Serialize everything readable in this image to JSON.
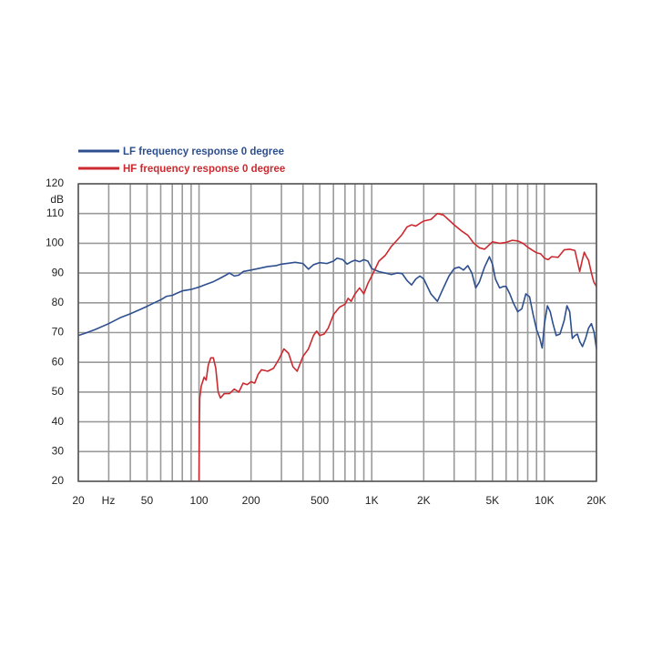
{
  "chart_data": {
    "type": "line",
    "title": "",
    "xlabel": "Hz",
    "ylabel": "dB",
    "x_scale": "log",
    "xlim": [
      20,
      20000
    ],
    "ylim": [
      20,
      120
    ],
    "grid": true,
    "legend_position": "top-left",
    "x_ticks": [
      {
        "value": 20,
        "label": "20"
      },
      {
        "value": 50,
        "label": "50"
      },
      {
        "value": 100,
        "label": "100"
      },
      {
        "value": 200,
        "label": "200"
      },
      {
        "value": 500,
        "label": "500"
      },
      {
        "value": 1000,
        "label": "1K"
      },
      {
        "value": 2000,
        "label": "2K"
      },
      {
        "value": 5000,
        "label": "5K"
      },
      {
        "value": 10000,
        "label": "10K"
      },
      {
        "value": 20000,
        "label": "20K"
      }
    ],
    "x_unit_label": "Hz",
    "x_minor_grid": [
      20,
      30,
      40,
      50,
      60,
      70,
      80,
      90,
      100,
      200,
      300,
      400,
      500,
      600,
      700,
      800,
      900,
      1000,
      2000,
      3000,
      4000,
      5000,
      6000,
      7000,
      8000,
      9000,
      10000,
      20000
    ],
    "y_ticks": [
      20,
      30,
      40,
      50,
      60,
      70,
      80,
      90,
      100,
      110,
      120
    ],
    "y_unit_label": "dB",
    "series": [
      {
        "name": "LF frequency response 0 degree",
        "color": "#2e4f8f",
        "points": [
          [
            20,
            69
          ],
          [
            22,
            69.8
          ],
          [
            25,
            71
          ],
          [
            30,
            73
          ],
          [
            35,
            75
          ],
          [
            40,
            76.3
          ],
          [
            45,
            77.6
          ],
          [
            50,
            78.8
          ],
          [
            55,
            80
          ],
          [
            60,
            81
          ],
          [
            65,
            82.2
          ],
          [
            70,
            82.5
          ],
          [
            75,
            83.3
          ],
          [
            80,
            84
          ],
          [
            90,
            84.5
          ],
          [
            100,
            85.3
          ],
          [
            110,
            86.2
          ],
          [
            120,
            87
          ],
          [
            130,
            88
          ],
          [
            140,
            89
          ],
          [
            150,
            90
          ],
          [
            160,
            89
          ],
          [
            170,
            89.3
          ],
          [
            180,
            90.5
          ],
          [
            200,
            91
          ],
          [
            220,
            91.5
          ],
          [
            250,
            92.2
          ],
          [
            280,
            92.5
          ],
          [
            300,
            93
          ],
          [
            330,
            93.3
          ],
          [
            360,
            93.6
          ],
          [
            400,
            93.2
          ],
          [
            430,
            91.3
          ],
          [
            460,
            92.8
          ],
          [
            500,
            93.5
          ],
          [
            550,
            93.2
          ],
          [
            600,
            94
          ],
          [
            630,
            95
          ],
          [
            680,
            94.5
          ],
          [
            720,
            93
          ],
          [
            760,
            93.8
          ],
          [
            800,
            94.3
          ],
          [
            850,
            93.8
          ],
          [
            900,
            94.5
          ],
          [
            950,
            94
          ],
          [
            1000,
            91.5
          ],
          [
            1100,
            90.5
          ],
          [
            1200,
            90
          ],
          [
            1300,
            89.5
          ],
          [
            1400,
            90
          ],
          [
            1500,
            89.8
          ],
          [
            1600,
            87.5
          ],
          [
            1700,
            86
          ],
          [
            1800,
            88
          ],
          [
            1900,
            89
          ],
          [
            2000,
            88
          ],
          [
            2200,
            83
          ],
          [
            2400,
            80.5
          ],
          [
            2600,
            85
          ],
          [
            2800,
            89
          ],
          [
            3000,
            91.5
          ],
          [
            3200,
            92
          ],
          [
            3400,
            91
          ],
          [
            3600,
            92.5
          ],
          [
            3800,
            90
          ],
          [
            4000,
            85
          ],
          [
            4200,
            87
          ],
          [
            4500,
            92
          ],
          [
            4800,
            95.5
          ],
          [
            5000,
            93
          ],
          [
            5200,
            88
          ],
          [
            5500,
            85
          ],
          [
            5800,
            85.5
          ],
          [
            6000,
            85.5
          ],
          [
            6300,
            83
          ],
          [
            6600,
            80
          ],
          [
            7000,
            77
          ],
          [
            7400,
            78
          ],
          [
            7800,
            83
          ],
          [
            8200,
            82
          ],
          [
            8600,
            76
          ],
          [
            9000,
            71
          ],
          [
            9400,
            68
          ],
          [
            9700,
            64.8
          ],
          [
            10000,
            73
          ],
          [
            10400,
            79
          ],
          [
            10800,
            77
          ],
          [
            11200,
            73
          ],
          [
            11700,
            69
          ],
          [
            12300,
            69.5
          ],
          [
            13000,
            74
          ],
          [
            13500,
            79
          ],
          [
            14000,
            77
          ],
          [
            14500,
            68
          ],
          [
            15000,
            69
          ],
          [
            15500,
            69.5
          ],
          [
            16000,
            67
          ],
          [
            16600,
            65.3
          ],
          [
            17300,
            68
          ],
          [
            18000,
            71.5
          ],
          [
            18700,
            73
          ],
          [
            19400,
            70
          ],
          [
            20000,
            64.5
          ]
        ]
      },
      {
        "name": "HF frequency response 0 degree",
        "color": "#cc2a2f",
        "points": [
          [
            100,
            20
          ],
          [
            100.5,
            40
          ],
          [
            101,
            48
          ],
          [
            103,
            52
          ],
          [
            107,
            55
          ],
          [
            110,
            54
          ],
          [
            113,
            59
          ],
          [
            117,
            61.5
          ],
          [
            121,
            61.5
          ],
          [
            125,
            58
          ],
          [
            129,
            50
          ],
          [
            133,
            48
          ],
          [
            140,
            49.5
          ],
          [
            150,
            49.5
          ],
          [
            160,
            51
          ],
          [
            170,
            50
          ],
          [
            180,
            53
          ],
          [
            190,
            52.5
          ],
          [
            200,
            53.5
          ],
          [
            210,
            53
          ],
          [
            220,
            56
          ],
          [
            230,
            57.5
          ],
          [
            250,
            57
          ],
          [
            270,
            58
          ],
          [
            290,
            61
          ],
          [
            310,
            64.5
          ],
          [
            330,
            63
          ],
          [
            350,
            58.5
          ],
          [
            370,
            57
          ],
          [
            400,
            62
          ],
          [
            430,
            64.5
          ],
          [
            460,
            69
          ],
          [
            480,
            70.5
          ],
          [
            500,
            69
          ],
          [
            530,
            69.5
          ],
          [
            560,
            71.5
          ],
          [
            600,
            76
          ],
          [
            650,
            78.5
          ],
          [
            700,
            79.5
          ],
          [
            730,
            81.5
          ],
          [
            760,
            80.5
          ],
          [
            800,
            83
          ],
          [
            850,
            85
          ],
          [
            900,
            83
          ],
          [
            950,
            86.5
          ],
          [
            1000,
            89
          ],
          [
            1100,
            94
          ],
          [
            1200,
            96
          ],
          [
            1300,
            99
          ],
          [
            1400,
            101
          ],
          [
            1500,
            103
          ],
          [
            1600,
            105.5
          ],
          [
            1700,
            106.2
          ],
          [
            1800,
            105.8
          ],
          [
            1900,
            106.7
          ],
          [
            2000,
            107.5
          ],
          [
            2200,
            108
          ],
          [
            2400,
            110
          ],
          [
            2600,
            109.5
          ],
          [
            2800,
            107.8
          ],
          [
            3000,
            106.2
          ],
          [
            3300,
            104.2
          ],
          [
            3600,
            102.7
          ],
          [
            3900,
            100
          ],
          [
            4200,
            98.5
          ],
          [
            4500,
            98
          ],
          [
            5000,
            100.5
          ],
          [
            5500,
            100
          ],
          [
            6000,
            100.3
          ],
          [
            6500,
            101
          ],
          [
            7000,
            100.8
          ],
          [
            7500,
            100
          ],
          [
            8000,
            98.7
          ],
          [
            8500,
            97.7
          ],
          [
            9000,
            96.8
          ],
          [
            9500,
            96.5
          ],
          [
            10000,
            95
          ],
          [
            10500,
            94.5
          ],
          [
            11000,
            95.5
          ],
          [
            12000,
            95.3
          ],
          [
            13000,
            97.8
          ],
          [
            14000,
            98
          ],
          [
            15000,
            97.6
          ],
          [
            16000,
            90.5
          ],
          [
            16500,
            94
          ],
          [
            17000,
            97
          ],
          [
            17500,
            95.5
          ],
          [
            18000,
            94.3
          ],
          [
            18700,
            90
          ],
          [
            19300,
            87
          ],
          [
            20000,
            85.5
          ]
        ]
      }
    ]
  }
}
